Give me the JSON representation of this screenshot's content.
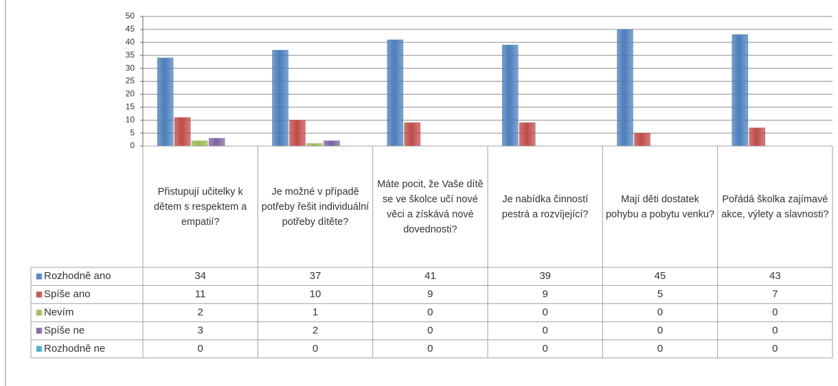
{
  "chart_data": {
    "type": "bar",
    "categories": [
      "Přistupují učitelky k dětem s respektem a empatií?",
      "Je možné v případě potřeby řešit individuální potřeby dítěte?",
      "Máte pocit, že Vaše dítě se ve školce učí nové věci a získává nové dovednosti?",
      "Je nabídka činností pestrá a rozvíjející?",
      "Mají děti dostatek pohybu a pobytu venku?",
      "Pořádá školka zajímavé akce, výlety a slavnosti?"
    ],
    "series": [
      {
        "name": "Rozhodně ano",
        "color": "#4a7ebb",
        "values": [
          34,
          37,
          41,
          39,
          45,
          43
        ]
      },
      {
        "name": "Spíše ano",
        "color": "#be4b48",
        "values": [
          11,
          10,
          9,
          9,
          5,
          7
        ]
      },
      {
        "name": "Nevím",
        "color": "#98b954",
        "values": [
          2,
          1,
          0,
          0,
          0,
          0
        ]
      },
      {
        "name": "Spíše ne",
        "color": "#7d60a0",
        "values": [
          3,
          2,
          0,
          0,
          0,
          0
        ]
      },
      {
        "name": "Rozhodně ne",
        "color": "#46aac5",
        "values": [
          0,
          0,
          0,
          0,
          0,
          0
        ]
      }
    ],
    "ylim": [
      0,
      50
    ],
    "yticks": [
      0,
      5,
      10,
      15,
      20,
      25,
      30,
      35,
      40,
      45,
      50
    ],
    "grid": true
  }
}
